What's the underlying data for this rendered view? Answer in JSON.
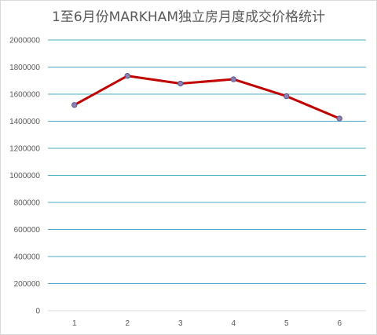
{
  "chart_data": {
    "type": "line",
    "title": "1至6月份MARKHAM独立房月度成交价格统计",
    "xlabel": "",
    "ylabel": "",
    "categories": [
      "1",
      "2",
      "3",
      "4",
      "5",
      "6"
    ],
    "series": [
      {
        "values": [
          1520000,
          1735000,
          1678000,
          1710000,
          1585000,
          1420000
        ]
      }
    ],
    "ylim": [
      0,
      2000000
    ],
    "yticks": [
      "0",
      "200000",
      "400000",
      "600000",
      "800000",
      "1000000",
      "1200000",
      "1400000",
      "1600000",
      "1800000",
      "2000000"
    ],
    "grid": true,
    "legend": "none",
    "colors": {
      "line": "#c00000",
      "marker_fill": "#8f7fb4",
      "marker_stroke": "#5b5b8a",
      "grid": "#4bacc6",
      "axis": "#d9d9d9"
    }
  }
}
